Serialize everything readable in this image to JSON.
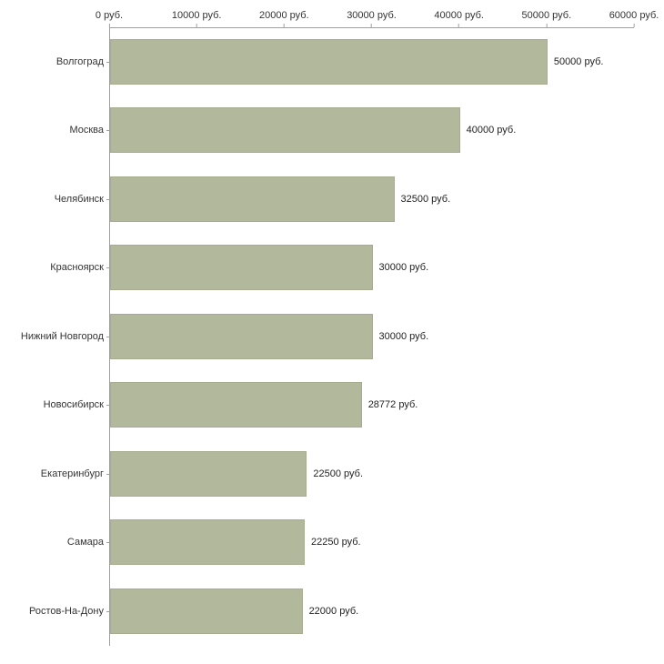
{
  "chart_data": {
    "type": "bar",
    "orientation": "horizontal",
    "title": "",
    "xlabel": "",
    "ylabel": "",
    "xlim": [
      0,
      60000
    ],
    "grid": "off",
    "legend": "none",
    "bar_color": "#b2b89b",
    "bar_border_color": "#a6ac8e",
    "axis_color": "#a0a0a0",
    "categories": [
      "Волгоград",
      "Москва",
      "Челябинск",
      "Красноярск",
      "Нижний Новгород",
      "Новосибирск",
      "Екатеринбург",
      "Самара",
      "Ростов-На-Дону"
    ],
    "values": [
      50000,
      40000,
      32500,
      30000,
      30000,
      28772,
      22500,
      22250,
      22000
    ],
    "value_labels": [
      "50000 руб.",
      "40000 руб.",
      "32500 руб.",
      "30000 руб.",
      "30000 руб.",
      "28772 руб.",
      "22500 руб.",
      "22250 руб.",
      "22000 руб."
    ],
    "x_ticks": [
      0,
      10000,
      20000,
      30000,
      40000,
      50000,
      60000
    ],
    "x_tick_labels": [
      "0 руб.",
      "10000 руб.",
      "20000 руб.",
      "30000 руб.",
      "40000 руб.",
      "50000 руб.",
      "60000 руб."
    ]
  }
}
